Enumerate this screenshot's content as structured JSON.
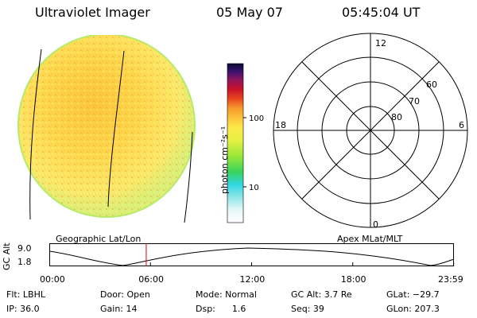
{
  "header": {
    "instrument": "Ultraviolet Imager",
    "date": "05 May 07",
    "time": "05:45:04 UT"
  },
  "colorbar": {
    "unit": "photon cm⁻²s⁻¹",
    "tick_100": "100",
    "tick_10": "10"
  },
  "labels": {
    "geo": "Geographic Lat/Lon",
    "apex": "Apex MLat/MLT"
  },
  "polar": {
    "mlt_top": "12",
    "mlt_left": "18",
    "mlt_right": "6",
    "mlt_bottom": "0",
    "lat_60": "60",
    "lat_70": "70",
    "lat_80": "80"
  },
  "timeline": {
    "ylabel": "GC Alt",
    "y_top": "9.0",
    "y_bottom": "1.8",
    "ticks": [
      "00:00",
      "06:00",
      "12:00",
      "18:00",
      "23:59"
    ],
    "current_hour": 5.75
  },
  "info": {
    "flt": "Flt: LBHL",
    "door": "Door: Open",
    "mode": "Mode: Normal",
    "gcalt": "GC Alt: 3.7 Re",
    "glat": "GLat: −29.7",
    "ip": "IP: 36.0",
    "gain": "Gain: 14",
    "dsp": "Dsp:      1.6",
    "seq": "Seq: 39",
    "glon": "GLon: 207.3"
  },
  "colors": {
    "disk_base": "#fcd84a",
    "disk_edge": "#c9ec5a",
    "timeline_marker": "#e00000"
  }
}
